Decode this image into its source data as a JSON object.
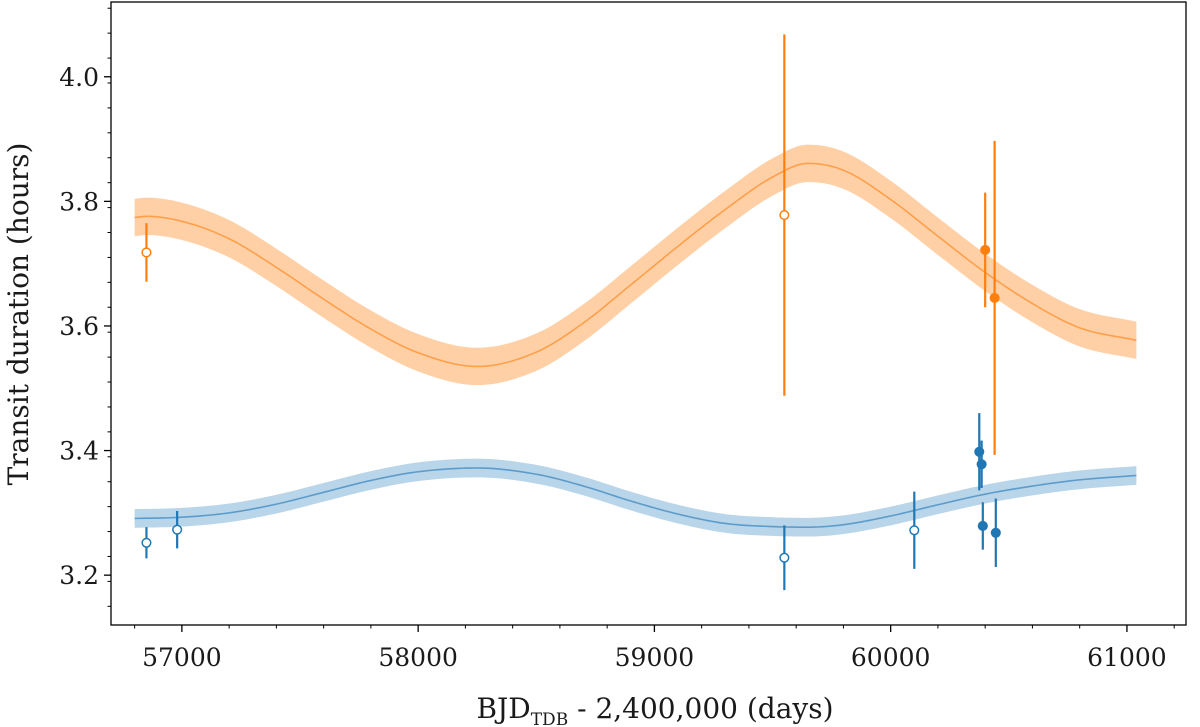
{
  "chart_data": {
    "type": "scatter",
    "title": "",
    "xlabel": "BJD",
    "xlabel_subscript": "TDB",
    "xlabel_suffix": " - 2,400,000 (days)",
    "ylabel": "Transit duration (hours)",
    "xlim": [
      56700,
      61250
    ],
    "ylim": [
      3.12,
      4.12
    ],
    "xticks": [
      57000,
      58000,
      59000,
      60000,
      61000
    ],
    "yticks": [
      3.2,
      3.4,
      3.6,
      3.8,
      4.0
    ],
    "ytick_labels": [
      "3.2",
      "3.4",
      "3.6",
      "3.8",
      "4.0"
    ],
    "grid": false,
    "legend": "none",
    "series": [
      {
        "color": "#ff7f0e",
        "band_color": "#ffd0a6",
        "model_x": [
          56800,
          56850,
          57000,
          57200,
          57400,
          57600,
          57800,
          58000,
          58250,
          58500,
          58700,
          58900,
          59100,
          59300,
          59500,
          59650,
          59800,
          60000,
          60200,
          60400,
          60600,
          60800,
          61040
        ],
        "model_y": [
          3.774,
          3.776,
          3.768,
          3.74,
          3.694,
          3.643,
          3.595,
          3.557,
          3.535,
          3.558,
          3.605,
          3.666,
          3.728,
          3.787,
          3.839,
          3.861,
          3.85,
          3.803,
          3.744,
          3.686,
          3.636,
          3.597,
          3.577
        ],
        "band_halfwidth": 0.03,
        "points": [
          {
            "x": 56850,
            "y": 3.718,
            "yerr": 0.047,
            "filled": false
          },
          {
            "x": 59550,
            "y": 3.778,
            "yerr": 0.29,
            "filled": false
          },
          {
            "x": 60400,
            "y": 3.722,
            "yerr": 0.092,
            "filled": true
          },
          {
            "x": 60440,
            "y": 3.645,
            "yerr": 0.252,
            "filled": true
          }
        ]
      },
      {
        "color": "#1f77b4",
        "band_color": "#b9d5ea",
        "model_x": [
          56800,
          57000,
          57200,
          57400,
          57600,
          57800,
          58000,
          58250,
          58500,
          58700,
          58900,
          59100,
          59300,
          59500,
          59650,
          59800,
          60000,
          60200,
          60400,
          60600,
          60800,
          61040
        ],
        "model_y": [
          3.291,
          3.293,
          3.3,
          3.314,
          3.333,
          3.352,
          3.366,
          3.372,
          3.362,
          3.343,
          3.319,
          3.298,
          3.283,
          3.278,
          3.277,
          3.281,
          3.295,
          3.313,
          3.33,
          3.343,
          3.353,
          3.36
        ],
        "band_halfwidth": 0.015,
        "points": [
          {
            "x": 56850,
            "y": 3.252,
            "yerr": 0.025,
            "filled": false
          },
          {
            "x": 56980,
            "y": 3.273,
            "yerr": 0.03,
            "filled": false
          },
          {
            "x": 59550,
            "y": 3.228,
            "yerr": 0.052,
            "filled": false
          },
          {
            "x": 60100,
            "y": 3.272,
            "yerr": 0.062,
            "filled": false
          },
          {
            "x": 60375,
            "y": 3.398,
            "yerr": 0.062,
            "filled": true
          },
          {
            "x": 60385,
            "y": 3.378,
            "yerr": 0.038,
            "filled": true
          },
          {
            "x": 60390,
            "y": 3.279,
            "yerr": 0.038,
            "filled": true
          },
          {
            "x": 60445,
            "y": 3.268,
            "yerr": 0.055,
            "filled": true
          }
        ]
      }
    ]
  }
}
